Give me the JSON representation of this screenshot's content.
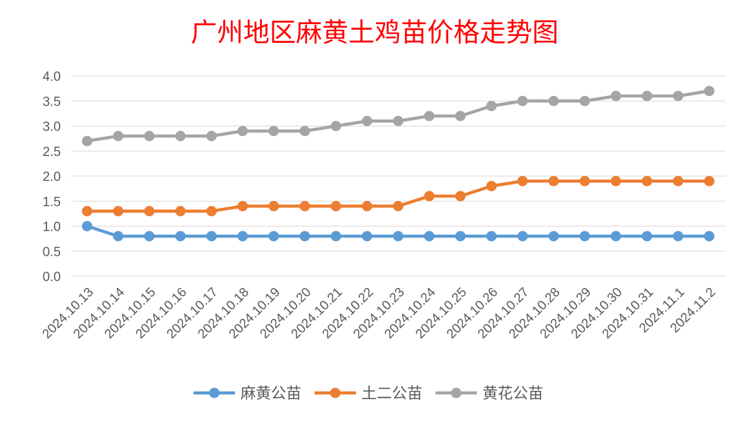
{
  "chart_data": {
    "type": "line",
    "title": "广州地区麻黄土鸡苗价格走势图",
    "categories": [
      "2024.10.13",
      "2024.10.14",
      "2024.10.15",
      "2024.10.16",
      "2024.10.17",
      "2024.10.18",
      "2024.10.19",
      "2024.10.20",
      "2024.10.21",
      "2024.10.22",
      "2024.10.23",
      "2024.10.24",
      "2024.10.25",
      "2024.10.26",
      "2024.10.27",
      "2024.10.28",
      "2024.10.29",
      "2024.10.30",
      "2024.10.31",
      "2024.11.1",
      "2024.11.2"
    ],
    "ylim": [
      0,
      4
    ],
    "yticks": [
      0,
      0.5,
      1,
      1.5,
      2,
      2.5,
      3,
      3.5,
      4
    ],
    "ytick_labels": [
      "0.0",
      "0.5",
      "1.0",
      "1.5",
      "2.0",
      "2.5",
      "3.0",
      "3.5",
      "4.0"
    ],
    "grid": true,
    "legend_position": "bottom",
    "series": [
      {
        "name": "麻黄公苗",
        "color": "#5b9bd5",
        "values": [
          1.0,
          0.8,
          0.8,
          0.8,
          0.8,
          0.8,
          0.8,
          0.8,
          0.8,
          0.8,
          0.8,
          0.8,
          0.8,
          0.8,
          0.8,
          0.8,
          0.8,
          0.8,
          0.8,
          0.8,
          0.8
        ]
      },
      {
        "name": "土二公苗",
        "color": "#ed7d31",
        "values": [
          1.3,
          1.3,
          1.3,
          1.3,
          1.3,
          1.4,
          1.4,
          1.4,
          1.4,
          1.4,
          1.4,
          1.6,
          1.6,
          1.8,
          1.9,
          1.9,
          1.9,
          1.9,
          1.9,
          1.9,
          1.9
        ]
      },
      {
        "name": "黄花公苗",
        "color": "#a5a5a5",
        "values": [
          2.7,
          2.8,
          2.8,
          2.8,
          2.8,
          2.9,
          2.9,
          2.9,
          3.0,
          3.1,
          3.1,
          3.2,
          3.2,
          3.4,
          3.5,
          3.5,
          3.5,
          3.6,
          3.6,
          3.6,
          3.7
        ]
      }
    ]
  },
  "colors": {
    "title": "#ff0000",
    "gridline": "#d9d9d9",
    "tick_text": "#595959"
  }
}
